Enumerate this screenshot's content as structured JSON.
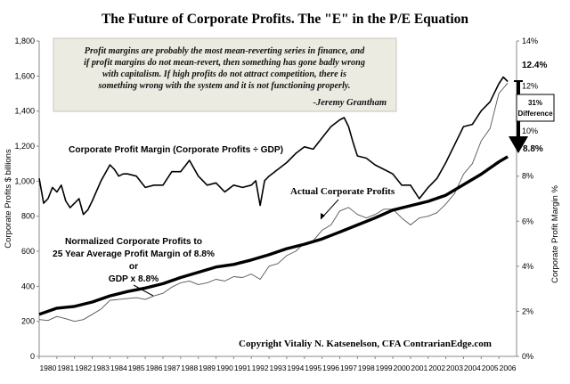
{
  "title": "The Future of Corporate Profits.  The \"E\" in the P/E Equation",
  "quote": {
    "lines": [
      "Profit margins are probably the most mean-reverting series in finance, and",
      "if profit margins do not mean-revert, then something has gone badly wrong",
      "with capitalism.  If high profits do not attract competition, there is",
      "something wrong with the system and it is not functioning properly."
    ],
    "attribution": "-Jeremy Grantham"
  },
  "annotations": {
    "margin_label": "Corporate Profit Margin (Corporate Profits  ÷ GDP)",
    "actual_label": "Actual Corporate Profits",
    "normalized_lines": [
      "Normalized Corporate Profits to",
      "25 Year Average Profit Margin of 8.8%",
      "or",
      "GDP x 8.8%"
    ],
    "copyright": "Copyright Vitaliy N. Katsenelson, CFA  ContrarianEdge.com",
    "end_margin": "12.4%",
    "avg_margin": "8.8%",
    "difference_pct": "31%",
    "difference_word": "Difference"
  },
  "colors": {
    "quote_box_bg": "#ecebe2",
    "quote_box_border": "#c8c5b8",
    "series_line": "#000000",
    "actual_line": "#555555"
  },
  "chart_data": {
    "type": "line",
    "ylabel": "Corporate Profits $ billions",
    "y2label": "Corporate Profit Margin %",
    "ylim": [
      0,
      1800
    ],
    "y2lim": [
      0,
      14
    ],
    "yticks": [
      "0",
      "200",
      "400",
      "600",
      "800",
      "1,000",
      "1,200",
      "1,400",
      "1,600",
      "1,800"
    ],
    "y2ticks": [
      "0%",
      "2%",
      "4%",
      "6%",
      "8%",
      "10%",
      "12%",
      "14%"
    ],
    "xlim": [
      1980,
      2007
    ],
    "xticks": [
      "1980",
      "1981",
      "1982",
      "1983",
      "1984",
      "1985",
      "1986",
      "1987",
      "1988",
      "1989",
      "1990",
      "1991",
      "1992",
      "1993",
      "1994",
      "1995",
      "1996",
      "1997",
      "1998",
      "1999",
      "2000",
      "2001",
      "2002",
      "2003",
      "2004",
      "2005",
      "2006"
    ],
    "grid": false,
    "series": [
      {
        "name": "Corporate Profit Margin (Corporate Profits  ÷ GDP)",
        "axis": "right",
        "x": [
          1980,
          1980.25,
          1980.5,
          1980.75,
          1981,
          1981.25,
          1981.5,
          1981.75,
          1982,
          1982.25,
          1982.5,
          1982.75,
          1983,
          1983.5,
          1984,
          1984.25,
          1984.5,
          1984.75,
          1985,
          1985.5,
          1986,
          1986.5,
          1987,
          1987.5,
          1988,
          1988.5,
          1989,
          1989.5,
          1990,
          1990.5,
          1991,
          1991.5,
          1992,
          1992.25,
          1992.5,
          1992.75,
          1993,
          1993.5,
          1994,
          1994.5,
          1995,
          1995.5,
          1996,
          1996.5,
          1997,
          1997.25,
          1997.5,
          1997.75,
          1998,
          1998.5,
          1999,
          1999.5,
          2000,
          2000.5,
          2001,
          2001.5,
          2002,
          2002.5,
          2003,
          2003.5,
          2004,
          2004.5,
          2005,
          2005.5,
          2006,
          2006.25,
          2006.5
        ],
        "values": [
          7.9,
          6.8,
          7.0,
          7.5,
          7.3,
          7.6,
          6.9,
          6.6,
          6.8,
          7.0,
          6.3,
          6.5,
          6.9,
          7.8,
          8.5,
          8.3,
          8.0,
          8.1,
          8.1,
          8.0,
          7.5,
          7.6,
          7.6,
          8.2,
          8.2,
          8.7,
          8.0,
          7.6,
          7.7,
          7.3,
          7.6,
          7.5,
          7.6,
          7.8,
          6.7,
          7.8,
          8.0,
          8.3,
          8.6,
          9.0,
          9.3,
          9.2,
          9.7,
          10.2,
          10.5,
          10.6,
          10.2,
          9.5,
          8.9,
          8.8,
          8.5,
          8.3,
          8.1,
          7.6,
          7.6,
          7.0,
          7.5,
          7.9,
          8.6,
          9.4,
          10.2,
          10.3,
          10.9,
          11.3,
          12.1,
          12.4,
          12.2
        ]
      },
      {
        "name": "Actual Corporate Profits",
        "axis": "left",
        "x": [
          1980,
          1980.5,
          1981,
          1981.5,
          1982,
          1982.5,
          1983,
          1983.5,
          1984,
          1984.5,
          1985,
          1985.5,
          1986,
          1986.5,
          1987,
          1987.5,
          1988,
          1988.5,
          1989,
          1989.5,
          1990,
          1990.5,
          1991,
          1991.5,
          1992,
          1992.5,
          1993,
          1993.5,
          1994,
          1994.5,
          1995,
          1995.5,
          1996,
          1996.5,
          1997,
          1997.5,
          1998,
          1998.5,
          1999,
          1999.5,
          2000,
          2000.5,
          2001,
          2001.5,
          2002,
          2002.5,
          2003,
          2003.5,
          2004,
          2004.5,
          2005,
          2005.5,
          2006,
          2006.5
        ],
        "values": [
          210,
          205,
          228,
          215,
          200,
          210,
          240,
          270,
          320,
          325,
          330,
          335,
          325,
          345,
          360,
          395,
          420,
          430,
          410,
          420,
          440,
          430,
          455,
          450,
          470,
          440,
          515,
          530,
          575,
          600,
          645,
          660,
          720,
          750,
          830,
          850,
          810,
          790,
          810,
          840,
          840,
          790,
          750,
          790,
          800,
          820,
          870,
          930,
          1040,
          1100,
          1230,
          1300,
          1500,
          1560
        ]
      },
      {
        "name": "Normalized Corporate Profits to 25 Year Average Profit Margin of 8.8%",
        "axis": "left",
        "x": [
          1980,
          1981,
          1982,
          1983,
          1984,
          1985,
          1986,
          1987,
          1988,
          1989,
          1990,
          1991,
          1992,
          1993,
          1994,
          1995,
          1996,
          1997,
          1998,
          1999,
          2000,
          2001,
          2002,
          2003,
          2004,
          2005,
          2006,
          2006.5
        ],
        "values": [
          240,
          275,
          285,
          310,
          345,
          370,
          390,
          415,
          450,
          480,
          510,
          525,
          550,
          580,
          615,
          640,
          670,
          710,
          750,
          790,
          835,
          860,
          885,
          920,
          980,
          1040,
          1110,
          1140
        ]
      }
    ]
  }
}
